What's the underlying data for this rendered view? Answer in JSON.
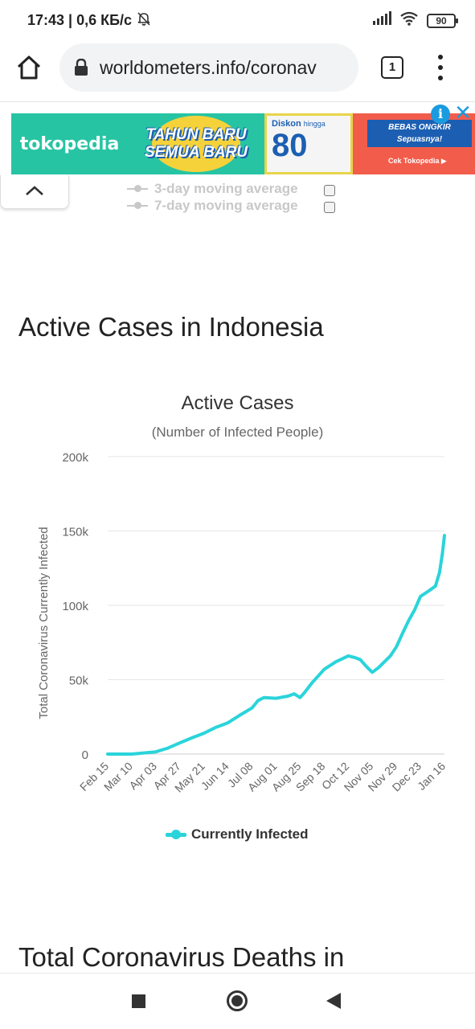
{
  "status_bar": {
    "time_and_speed": "17:43 | 0,6 КБ/с",
    "icons": [
      "mute-bell-icon",
      "signal-icon",
      "wifi-icon"
    ],
    "battery": "90"
  },
  "browser": {
    "url": "worldometers.info/coronav",
    "tab_count": "1",
    "icons": [
      "home-icon",
      "lock-icon",
      "tabs-icon",
      "overflow-menu-icon"
    ]
  },
  "ad": {
    "brand": "tokopedia",
    "promo_line1": "TAHUN BARU",
    "promo_line2": "SEMUA BARU",
    "discount_label": "Diskon",
    "discount_small": "hingga",
    "discount_value": "80",
    "shipping_line1": "BEBAS ONGKIR",
    "shipping_line2": "Sepuasnya!",
    "cta": "Cek Tokopedia ▶",
    "info_glyph": "i",
    "close_glyph": "✕"
  },
  "prev_chart_legend": {
    "items": [
      "3-day moving average",
      "7-day moving average"
    ]
  },
  "section": {
    "title": "Active Cases in Indonesia",
    "next_title": "Total Coronavirus Deaths in"
  },
  "chart_data": {
    "type": "line",
    "title": "Active Cases",
    "subtitle": "(Number of Infected People)",
    "ylabel": "Total Coronavirus Currently Infected",
    "xlabel": "",
    "ylim": [
      0,
      200000
    ],
    "ytick_labels": [
      "0",
      "50k",
      "100k",
      "150k",
      "200k"
    ],
    "yticks": [
      0,
      50000,
      100000,
      150000,
      200000
    ],
    "xtick_labels": [
      "Feb 15",
      "Mar 10",
      "Apr 03",
      "Apr 27",
      "May 21",
      "Jun 14",
      "Jul 08",
      "Aug 01",
      "Aug 25",
      "Sep 18",
      "Oct 12",
      "Nov 05",
      "Nov 29",
      "Dec 23",
      "Jan 16"
    ],
    "grid": true,
    "legend_position": "bottom-center",
    "color": "#2ad4da",
    "series": [
      {
        "name": "Currently Infected",
        "x": [
          "Feb 15",
          "Mar 10",
          "Apr 03",
          "Apr 15",
          "Apr 27",
          "May 09",
          "May 21",
          "Jun 02",
          "Jun 14",
          "Jun 26",
          "Jul 08",
          "Jul 14",
          "Jul 20",
          "Aug 01",
          "Aug 13",
          "Aug 19",
          "Aug 25",
          "Aug 29",
          "Sep 06",
          "Sep 18",
          "Sep 30",
          "Oct 12",
          "Oct 18",
          "Oct 24",
          "Oct 30",
          "Nov 05",
          "Nov 11",
          "Nov 17",
          "Nov 23",
          "Nov 29",
          "Dec 05",
          "Dec 11",
          "Dec 17",
          "Dec 23",
          "Jan 01",
          "Jan 07",
          "Jan 11",
          "Jan 14",
          "Jan 16"
        ],
        "values": [
          0,
          0,
          1500,
          4000,
          7500,
          11000,
          14000,
          18000,
          21000,
          26000,
          31000,
          36000,
          38000,
          37500,
          39000,
          40500,
          38000,
          41000,
          48000,
          57000,
          62000,
          66000,
          65000,
          63500,
          59000,
          55000,
          58000,
          62000,
          66000,
          72000,
          82000,
          90000,
          97000,
          106000,
          110000,
          113000,
          122000,
          135000,
          147000
        ]
      }
    ]
  },
  "nav_bar": {
    "icons": [
      "recents-icon",
      "home-circle-icon",
      "back-icon"
    ]
  }
}
